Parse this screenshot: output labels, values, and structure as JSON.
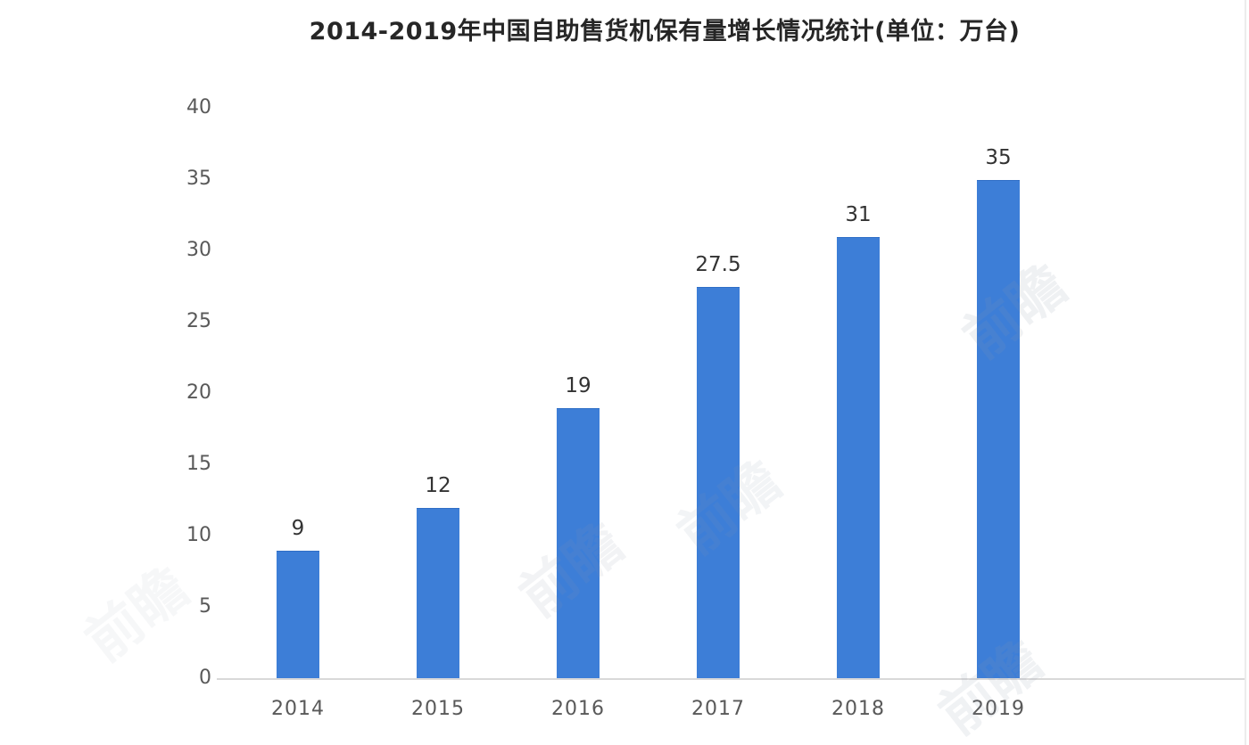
{
  "title": {
    "text": "2014-2019年中国自助售货机保有量增长情况统计(单位：万台)"
  },
  "chart_data": {
    "type": "bar",
    "categories": [
      "2014",
      "2015",
      "2016",
      "2017",
      "2018",
      "2019"
    ],
    "values": [
      9,
      12,
      19,
      27.5,
      31,
      35
    ],
    "data_labels": [
      "9",
      "12",
      "19",
      "27.5",
      "31",
      "35"
    ],
    "title": "2014-2019年中国自助售货机保有量增长情况统计(单位：万台)",
    "xlabel": "",
    "ylabel": "",
    "ylim": [
      0,
      40
    ],
    "y_ticks": [
      0,
      5,
      10,
      15,
      20,
      25,
      30,
      35,
      40
    ],
    "grid": false,
    "legend": "none",
    "bar_color": "#3d7ed7"
  },
  "watermark": {
    "text": "前瞻"
  },
  "colors": {
    "bar": "#3d7ed7",
    "title_text": "#262626",
    "axis_text": "#595959",
    "data_label_text": "#333333",
    "axis_line": "#d9d9d9"
  }
}
